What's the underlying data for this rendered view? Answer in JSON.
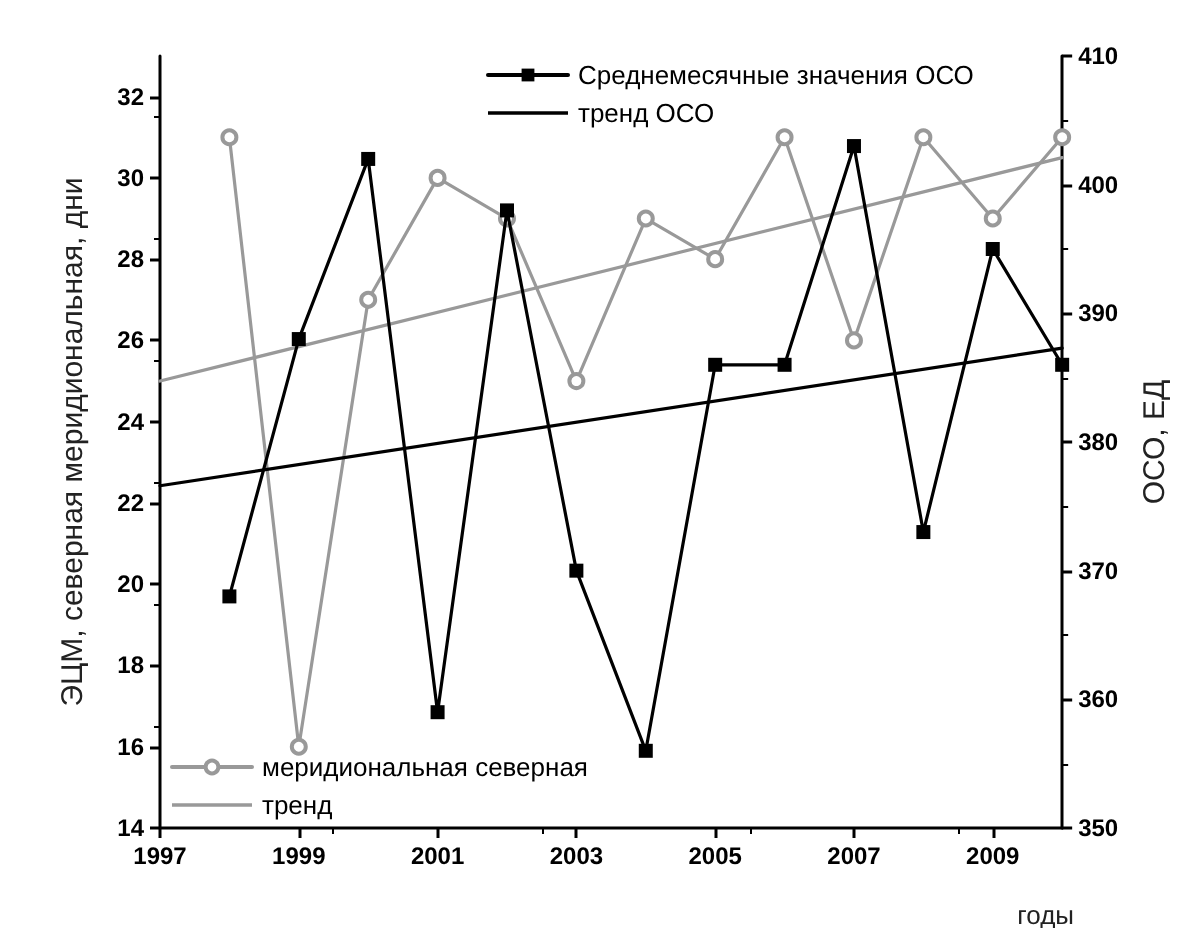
{
  "chart_data": {
    "type": "line",
    "xlabel": "годы",
    "ylabel": "ЭЦМ, северная меридиональная, дни",
    "y2label": "ОСО, ЕД",
    "xlim": [
      1997,
      2010
    ],
    "xticks": [
      1997,
      1999,
      2001,
      2003,
      2005,
      2007,
      2009
    ],
    "ylim": [
      14,
      33
    ],
    "yticks": [
      14,
      16,
      18,
      20,
      22,
      24,
      26,
      28,
      30,
      32
    ],
    "y2lim": [
      350,
      410
    ],
    "y2ticks": [
      350,
      360,
      370,
      380,
      390,
      400,
      410
    ],
    "grid": false,
    "legend": "bottom left",
    "series": [
      {
        "name": "Среднемесячные значения ОСО",
        "color": "#000000",
        "axis": "y2",
        "marker": "square",
        "x": [
          1998,
          1999,
          2000,
          2001,
          2002,
          2003,
          2004,
          2005,
          2006,
          2007,
          2008,
          2009,
          2010
        ],
        "values": [
          368,
          388,
          402,
          359,
          398,
          370,
          356,
          386,
          386,
          403,
          373,
          395,
          386
        ]
      },
      {
        "name": "тренд ОСО",
        "color": "#000000",
        "axis": "y2",
        "marker": "none",
        "x": [
          1997,
          2010
        ],
        "values": [
          376.6,
          387.3
        ]
      },
      {
        "name": "меридиональная северная",
        "color": "#999999",
        "marker": "circle",
        "x": [
          1998,
          1999,
          2000,
          2001,
          2002,
          2003,
          2004,
          2005,
          2006,
          2007,
          2008,
          2009,
          2010
        ],
        "values": [
          31,
          16,
          27,
          30,
          29,
          25,
          29,
          28,
          31,
          26,
          31,
          29,
          31
        ]
      },
      {
        "name": "тренд",
        "color": "#999999",
        "marker": "none",
        "x": [
          1997,
          2010
        ],
        "values": [
          25,
          30.5
        ]
      }
    ]
  }
}
